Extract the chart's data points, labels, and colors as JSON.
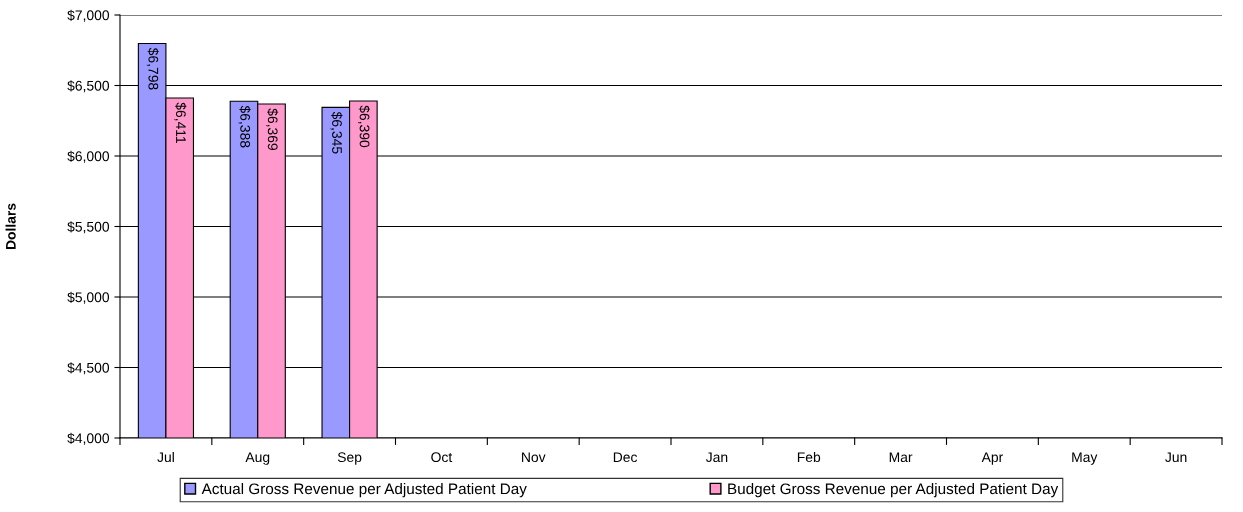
{
  "chart_data": {
    "type": "bar",
    "ylabel": "Dollars",
    "categories": [
      "Jul",
      "Aug",
      "Sep",
      "Oct",
      "Nov",
      "Dec",
      "Jan",
      "Feb",
      "Mar",
      "Apr",
      "May",
      "Jun"
    ],
    "series": [
      {
        "name": "Actual Gross Revenue per Adjusted Patient Day",
        "color": "#9999ff",
        "values": [
          6798,
          6388,
          6345,
          null,
          null,
          null,
          null,
          null,
          null,
          null,
          null,
          null
        ],
        "value_labels": [
          "$6,798",
          "$6,388",
          "$6,345",
          null,
          null,
          null,
          null,
          null,
          null,
          null,
          null,
          null
        ]
      },
      {
        "name": "Budget Gross Revenue per Adjusted Patient Day",
        "color": "#ff99cc",
        "values": [
          6411,
          6369,
          6390,
          null,
          null,
          null,
          null,
          null,
          null,
          null,
          null,
          null
        ],
        "value_labels": [
          "$6,411",
          "$6,369",
          "$6,390",
          null,
          null,
          null,
          null,
          null,
          null,
          null,
          null,
          null
        ]
      }
    ],
    "ylim": [
      4000,
      7000
    ],
    "yticks": [
      {
        "value": 4000,
        "label": "$4,000"
      },
      {
        "value": 4500,
        "label": "$4,500"
      },
      {
        "value": 5000,
        "label": "$5,000"
      },
      {
        "value": 5500,
        "label": "$5,500"
      },
      {
        "value": 6000,
        "label": "$6,000"
      },
      {
        "value": 6500,
        "label": "$6,500"
      },
      {
        "value": 7000,
        "label": "$7,000"
      }
    ],
    "grid": "y",
    "legend": "bottom"
  }
}
